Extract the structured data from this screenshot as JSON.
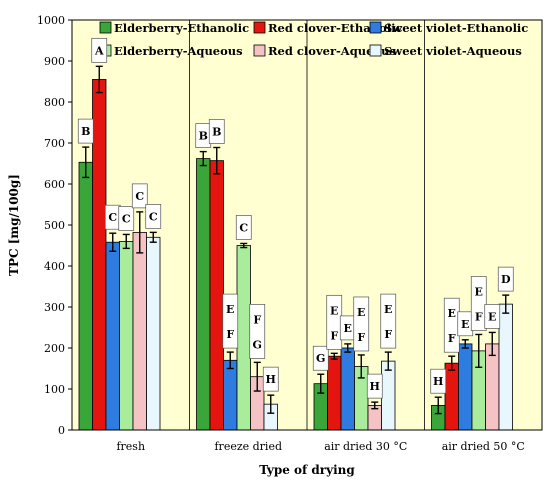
{
  "chart_data": {
    "type": "bar",
    "title": "",
    "xlabel": "Type of drying",
    "ylabel": "TPC [mg/100g]",
    "ylim": [
      0,
      1000
    ],
    "yticks": [
      "0",
      "100",
      "200",
      "300",
      "400",
      "500",
      "600",
      "700",
      "800",
      "900",
      "1000"
    ],
    "categories": [
      "fresh",
      "freeze dried",
      "air dried 30 °C",
      "air dried 50 °C"
    ],
    "legend_position": "top",
    "grid": false,
    "background_color": "#ffffd2",
    "series": [
      {
        "name": "Elderberry-Ethanolic",
        "color": "#3aa63a",
        "values": [
          653,
          662,
          113,
          60
        ],
        "errors": [
          37,
          17,
          23,
          20
        ],
        "letters": [
          "B",
          "B",
          "G",
          "H"
        ]
      },
      {
        "name": "Red clover-Ethanolic",
        "color": "#e4150f",
        "values": [
          855,
          657,
          180,
          163
        ],
        "errors": [
          32,
          32,
          7,
          17
        ],
        "letters": [
          "A",
          "B",
          "E F",
          "E F"
        ]
      },
      {
        "name": "Sweet violet-Ethanolic",
        "color": "#2e7ce0",
        "values": [
          458,
          170,
          200,
          210
        ],
        "errors": [
          22,
          20,
          10,
          10
        ],
        "letters": [
          "C",
          "E F",
          "E",
          "E"
        ]
      },
      {
        "name": "Elderberry-Aqueous",
        "color": "#a9ec9c",
        "values": [
          460,
          450,
          155,
          193
        ],
        "errors": [
          17,
          5,
          28,
          40
        ],
        "letters": [
          "C",
          "C",
          "E F",
          "E F"
        ]
      },
      {
        "name": "Red clover-Aqueous",
        "color": "#f5c3c3",
        "values": [
          482,
          130,
          60,
          210
        ],
        "errors": [
          50,
          35,
          8,
          28
        ],
        "letters": [
          "C",
          "F G",
          "H",
          "E"
        ]
      },
      {
        "name": "Sweet violet-Aqueous",
        "color": "#e8f6fd",
        "values": [
          470,
          63,
          168,
          307
        ],
        "errors": [
          12,
          22,
          22,
          22
        ],
        "letters": [
          "C",
          "H",
          "E F",
          "D"
        ]
      }
    ]
  }
}
